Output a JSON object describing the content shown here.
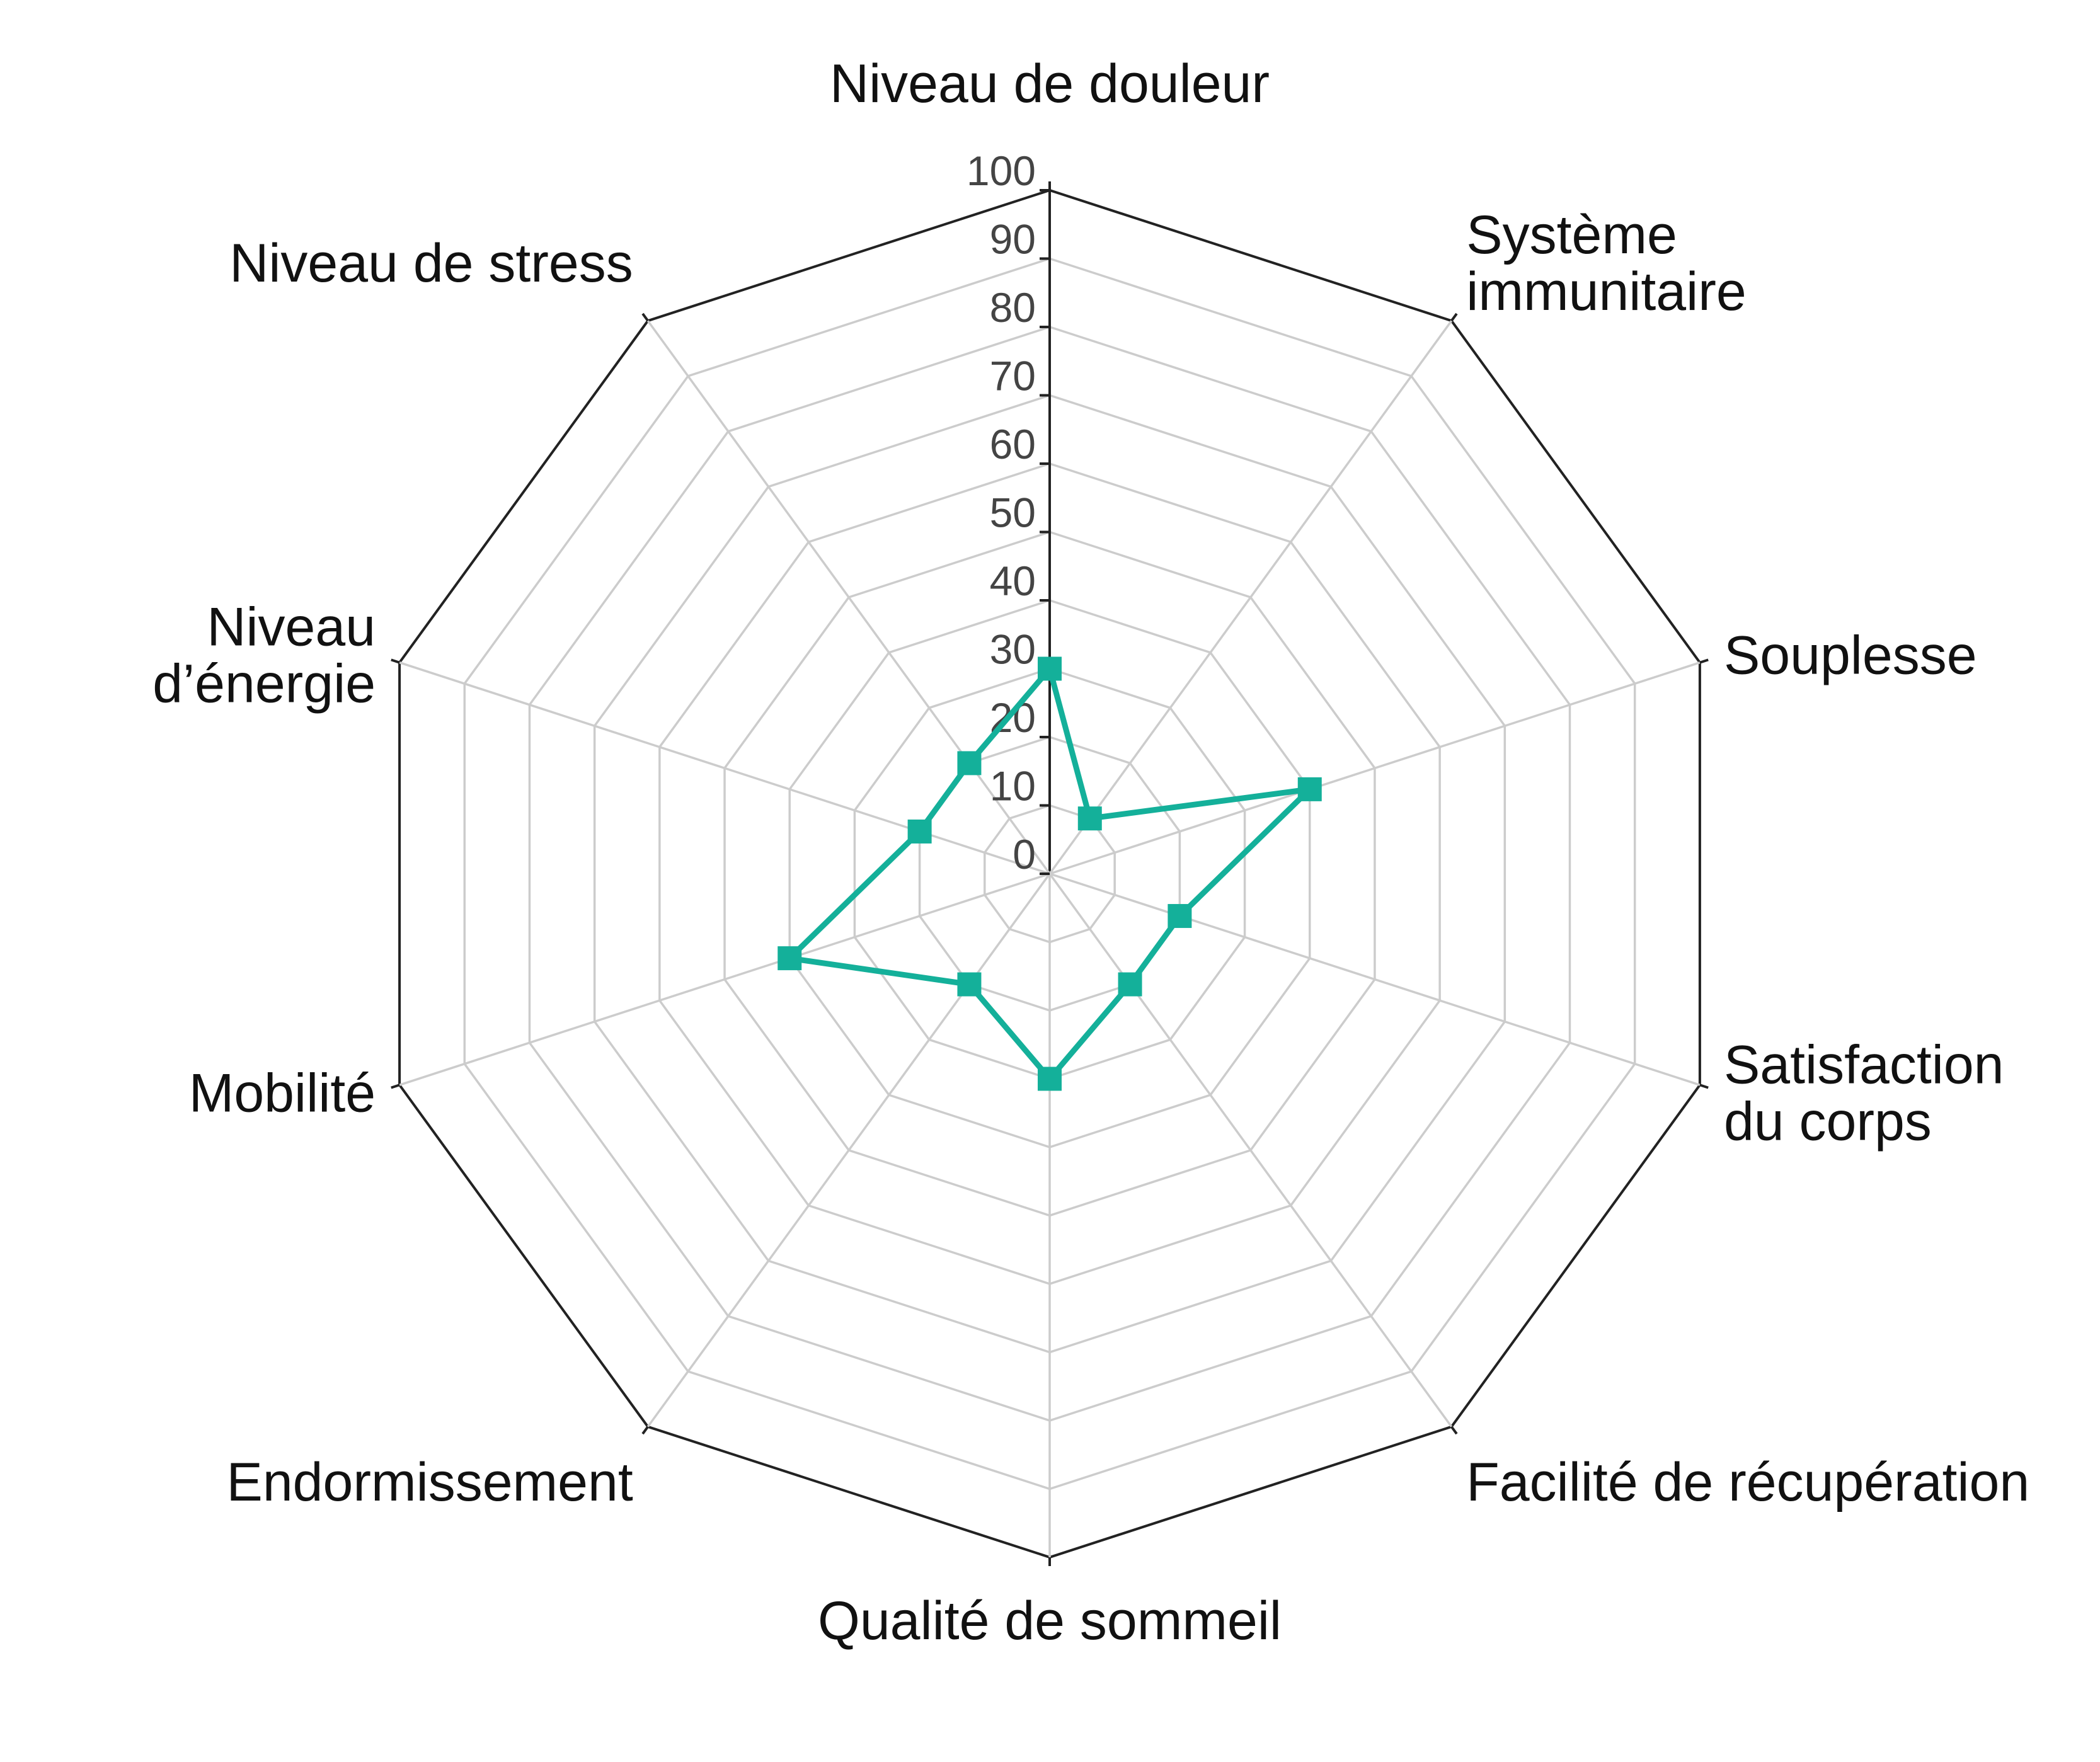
{
  "chart_data": {
    "type": "radar",
    "title": "",
    "axes": [
      "Niveau de douleur",
      "Système immunitaire",
      "Souplesse",
      "Satisfaction du corps",
      "Facilité de récupération",
      "Qualité de sommeil",
      "Endormissement",
      "Mobilité",
      "Niveau d’énergie",
      "Niveau de stress"
    ],
    "axis_label_lines": [
      [
        "Niveau de douleur"
      ],
      [
        "Système",
        "immunitaire"
      ],
      [
        "Souplesse"
      ],
      [
        "Satisfaction",
        "du corps"
      ],
      [
        "Facilité de récupération"
      ],
      [
        "Qualité de sommeil"
      ],
      [
        "Endormissement"
      ],
      [
        "Mobilité"
      ],
      [
        "Niveau",
        "d’énergie"
      ],
      [
        "Niveau de stress"
      ]
    ],
    "series": [
      {
        "name": "",
        "values": [
          30,
          10,
          40,
          20,
          20,
          30,
          20,
          40,
          20,
          20
        ]
      }
    ],
    "radial_range": [
      0,
      100
    ],
    "radial_ticks": [
      0,
      10,
      20,
      30,
      40,
      50,
      60,
      70,
      80,
      90,
      100
    ],
    "radial_tick_labels": [
      "0",
      "10",
      "20",
      "30",
      "40",
      "50",
      "60",
      "70",
      "80",
      "90",
      "100"
    ],
    "grid": true,
    "legend": false,
    "colors": {
      "series": "#14b09a",
      "grid": "#cccccc",
      "outer_frame": "#222222",
      "text": "#111111",
      "tick_text": "#444444"
    }
  }
}
